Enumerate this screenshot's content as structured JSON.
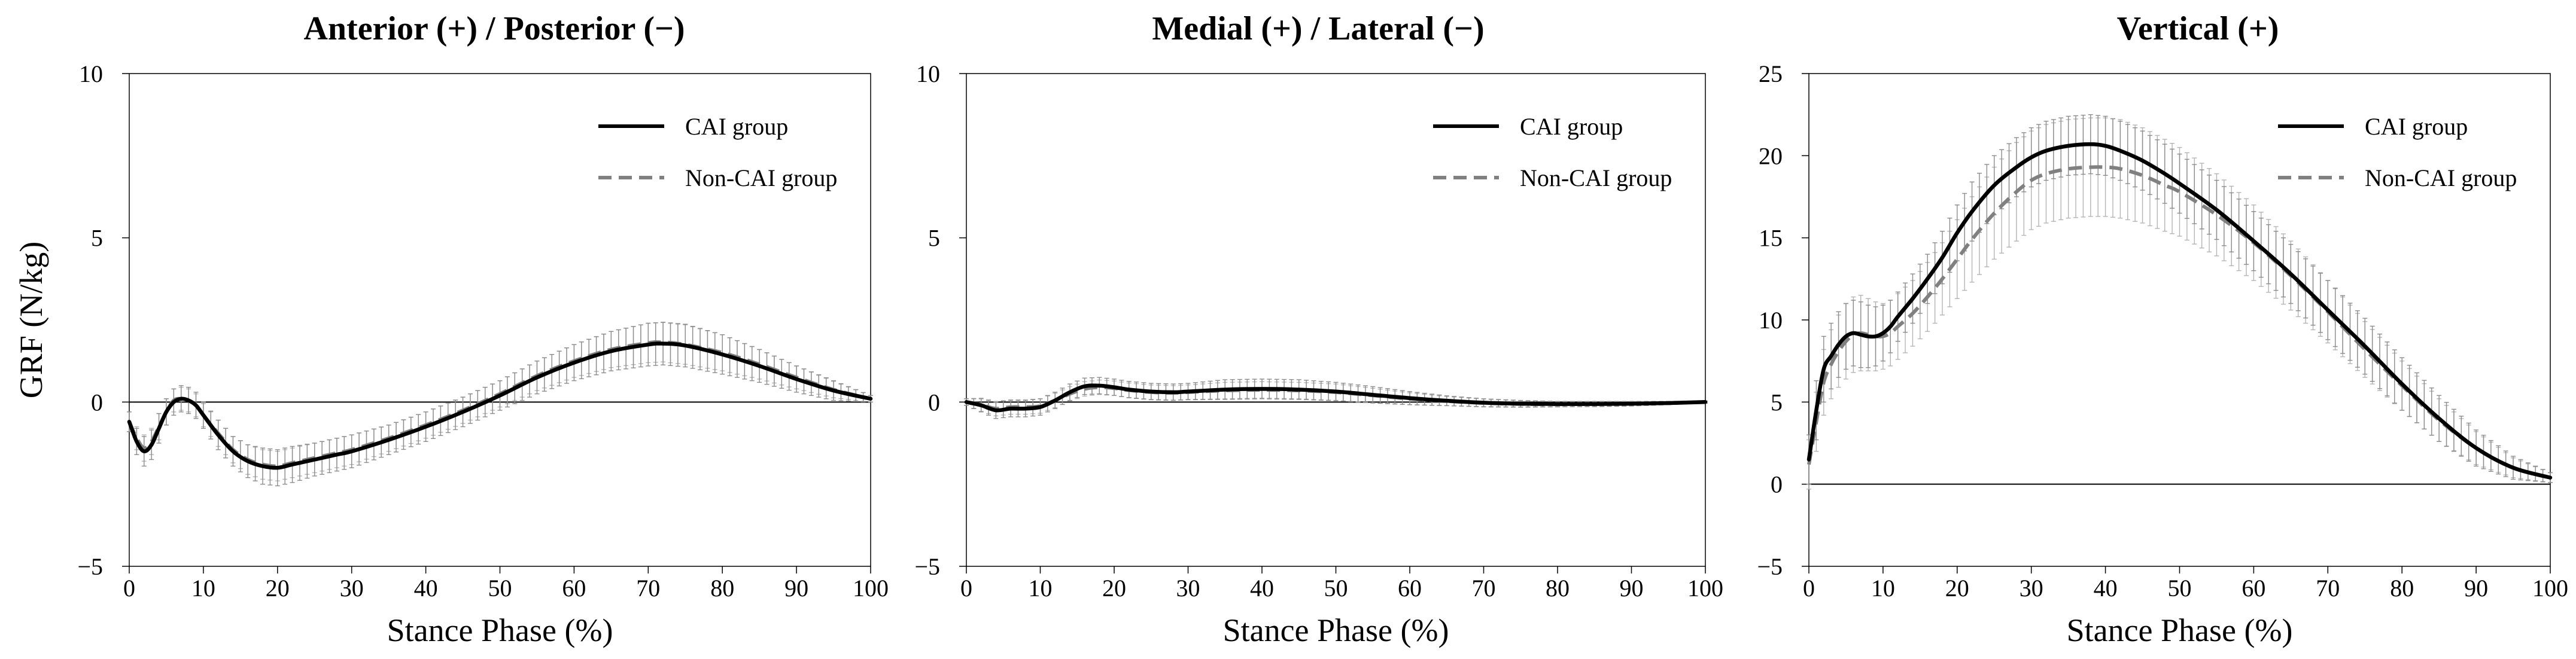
{
  "chart_data": [
    {
      "type": "line",
      "title": "Anterior (+) / Posterior (−)",
      "xlabel": "Stance Phase (%)",
      "ylabel": "GRF (N/kg)",
      "xlim": [
        0,
        100
      ],
      "ylim": [
        -5,
        10
      ],
      "xticks": [
        0,
        10,
        20,
        30,
        40,
        50,
        60,
        70,
        80,
        90,
        100
      ],
      "xtick_labels": [
        "0",
        "10",
        "20",
        "30",
        "40",
        "50",
        "60",
        "70",
        "80",
        "90",
        "100"
      ],
      "yticks": [
        -5,
        0,
        5,
        10
      ],
      "ytick_labels": [
        "−5",
        "0",
        "5",
        "10"
      ],
      "zero_line": true,
      "legend_position": "top-right",
      "series": [
        {
          "name": "CAI group",
          "style": "solid",
          "color": "#000000",
          "x": [
            0,
            1,
            2,
            3,
            4,
            5,
            6,
            7,
            8,
            9,
            10,
            12,
            14,
            16,
            18,
            20,
            22,
            25,
            28,
            30,
            35,
            40,
            45,
            50,
            55,
            60,
            65,
            70,
            72,
            75,
            80,
            85,
            90,
            95,
            100
          ],
          "y": [
            -0.6,
            -1.2,
            -1.5,
            -1.3,
            -0.8,
            -0.3,
            0.0,
            0.1,
            0.05,
            -0.1,
            -0.4,
            -1.0,
            -1.5,
            -1.8,
            -1.95,
            -2.0,
            -1.9,
            -1.75,
            -1.6,
            -1.5,
            -1.15,
            -0.75,
            -0.3,
            0.2,
            0.75,
            1.2,
            1.55,
            1.75,
            1.78,
            1.72,
            1.45,
            1.1,
            0.7,
            0.35,
            0.1
          ],
          "sd": [
            0.3,
            0.4,
            0.45,
            0.45,
            0.45,
            0.4,
            0.4,
            0.4,
            0.4,
            0.4,
            0.4,
            0.45,
            0.45,
            0.5,
            0.55,
            0.55,
            0.55,
            0.5,
            0.5,
            0.5,
            0.45,
            0.45,
            0.45,
            0.45,
            0.5,
            0.55,
            0.6,
            0.65,
            0.65,
            0.65,
            0.6,
            0.5,
            0.4,
            0.3,
            0.1
          ]
        },
        {
          "name": "Non-CAI group",
          "style": "dashed",
          "color": "#808080",
          "x": [
            0,
            1,
            2,
            3,
            4,
            5,
            6,
            7,
            8,
            9,
            10,
            12,
            14,
            16,
            18,
            20,
            22,
            25,
            28,
            30,
            35,
            40,
            45,
            50,
            55,
            60,
            65,
            70,
            72,
            75,
            80,
            85,
            90,
            95,
            100
          ],
          "y": [
            -0.6,
            -1.1,
            -1.4,
            -1.2,
            -0.75,
            -0.3,
            0.05,
            0.1,
            0.05,
            -0.1,
            -0.4,
            -0.95,
            -1.45,
            -1.75,
            -1.9,
            -1.95,
            -1.85,
            -1.7,
            -1.55,
            -1.45,
            -1.1,
            -0.7,
            -0.25,
            0.25,
            0.8,
            1.25,
            1.6,
            1.8,
            1.82,
            1.75,
            1.5,
            1.15,
            0.75,
            0.38,
            0.1
          ],
          "sd": [
            0.3,
            0.35,
            0.4,
            0.4,
            0.4,
            0.4,
            0.35,
            0.35,
            0.35,
            0.35,
            0.35,
            0.4,
            0.4,
            0.45,
            0.45,
            0.45,
            0.45,
            0.45,
            0.45,
            0.45,
            0.4,
            0.4,
            0.4,
            0.4,
            0.45,
            0.5,
            0.55,
            0.6,
            0.6,
            0.6,
            0.55,
            0.45,
            0.35,
            0.25,
            0.1
          ]
        }
      ]
    },
    {
      "type": "line",
      "title": "Medial (+) / Lateral (−)",
      "xlabel": "Stance Phase (%)",
      "ylabel": "",
      "xlim": [
        0,
        100
      ],
      "ylim": [
        -5,
        10
      ],
      "xticks": [
        0,
        10,
        20,
        30,
        40,
        50,
        60,
        70,
        80,
        90,
        100
      ],
      "xtick_labels": [
        "0",
        "10",
        "20",
        "30",
        "40",
        "50",
        "60",
        "70",
        "80",
        "90",
        "100"
      ],
      "yticks": [
        -5,
        0,
        5,
        10
      ],
      "ytick_labels": [
        "−5",
        "0",
        "5",
        "10"
      ],
      "zero_line": true,
      "legend_position": "top-right",
      "series": [
        {
          "name": "CAI group",
          "style": "solid",
          "color": "#000000",
          "x": [
            0,
            2,
            4,
            6,
            8,
            10,
            12,
            14,
            16,
            18,
            20,
            22,
            25,
            28,
            30,
            35,
            40,
            45,
            50,
            55,
            60,
            65,
            70,
            75,
            80,
            85,
            90,
            95,
            100
          ],
          "y": [
            0.0,
            -0.1,
            -0.25,
            -0.2,
            -0.2,
            -0.15,
            0.05,
            0.3,
            0.48,
            0.5,
            0.45,
            0.38,
            0.32,
            0.3,
            0.32,
            0.38,
            0.4,
            0.38,
            0.32,
            0.22,
            0.12,
            0.04,
            -0.02,
            -0.05,
            -0.06,
            -0.06,
            -0.05,
            -0.03,
            0.0
          ],
          "sd": [
            0.1,
            0.2,
            0.25,
            0.25,
            0.25,
            0.25,
            0.25,
            0.25,
            0.25,
            0.25,
            0.25,
            0.25,
            0.25,
            0.25,
            0.25,
            0.3,
            0.3,
            0.3,
            0.28,
            0.25,
            0.2,
            0.15,
            0.12,
            0.1,
            0.08,
            0.08,
            0.07,
            0.05,
            0.03
          ]
        },
        {
          "name": "Non-CAI group",
          "style": "dashed",
          "color": "#808080",
          "x": [
            0,
            2,
            4,
            6,
            8,
            10,
            12,
            14,
            16,
            18,
            20,
            22,
            25,
            28,
            30,
            35,
            40,
            45,
            50,
            55,
            60,
            65,
            70,
            75,
            80,
            85,
            90,
            95,
            100
          ],
          "y": [
            0.0,
            -0.08,
            -0.2,
            -0.15,
            -0.15,
            -0.12,
            0.05,
            0.25,
            0.4,
            0.45,
            0.42,
            0.36,
            0.3,
            0.28,
            0.3,
            0.35,
            0.37,
            0.35,
            0.3,
            0.2,
            0.1,
            0.03,
            -0.03,
            -0.06,
            -0.07,
            -0.06,
            -0.05,
            -0.03,
            0.0
          ],
          "sd": [
            0.1,
            0.2,
            0.22,
            0.22,
            0.22,
            0.22,
            0.22,
            0.22,
            0.22,
            0.22,
            0.22,
            0.22,
            0.22,
            0.22,
            0.22,
            0.25,
            0.25,
            0.25,
            0.25,
            0.22,
            0.18,
            0.14,
            0.12,
            0.1,
            0.08,
            0.07,
            0.06,
            0.05,
            0.03
          ]
        }
      ]
    },
    {
      "type": "line",
      "title": "Vertical (+)",
      "xlabel": "Stance Phase (%)",
      "ylabel": "",
      "xlim": [
        0,
        100
      ],
      "ylim": [
        -5,
        25
      ],
      "xticks": [
        0,
        10,
        20,
        30,
        40,
        50,
        60,
        70,
        80,
        90,
        100
      ],
      "xtick_labels": [
        "0",
        "10",
        "20",
        "30",
        "40",
        "50",
        "60",
        "70",
        "80",
        "90",
        "100"
      ],
      "yticks": [
        -5,
        0,
        5,
        10,
        15,
        20,
        25
      ],
      "ytick_labels": [
        "−5",
        "0",
        "5",
        "10",
        "15",
        "20",
        "25"
      ],
      "zero_line": true,
      "legend_position": "top-right",
      "series": [
        {
          "name": "CAI group",
          "style": "solid",
          "color": "#000000",
          "x": [
            0,
            1,
            2,
            3,
            4,
            5,
            6,
            7,
            8,
            9,
            10,
            11,
            12,
            14,
            16,
            18,
            20,
            22,
            25,
            28,
            30,
            32,
            35,
            38,
            40,
            42,
            45,
            48,
            50,
            55,
            60,
            65,
            70,
            75,
            80,
            85,
            90,
            95,
            100
          ],
          "y": [
            1.5,
            4.5,
            7.0,
            7.8,
            8.5,
            9.0,
            9.2,
            9.1,
            9.0,
            9.0,
            9.2,
            9.6,
            10.2,
            11.3,
            12.5,
            13.8,
            15.3,
            16.6,
            18.2,
            19.3,
            19.9,
            20.3,
            20.6,
            20.7,
            20.6,
            20.3,
            19.7,
            18.9,
            18.3,
            16.7,
            14.8,
            12.8,
            10.6,
            8.4,
            6.1,
            4.0,
            2.2,
            1.0,
            0.4
          ],
          "sd": [
            1.5,
            1.8,
            2.0,
            2.0,
            2.0,
            2.0,
            2.0,
            2.0,
            1.9,
            1.8,
            1.7,
            1.6,
            1.5,
            1.5,
            1.5,
            1.6,
            1.7,
            1.8,
            1.8,
            1.8,
            1.8,
            1.8,
            1.8,
            1.8,
            1.8,
            1.8,
            1.8,
            1.8,
            1.8,
            1.8,
            1.8,
            1.8,
            1.8,
            1.7,
            1.6,
            1.4,
            1.1,
            0.7,
            0.3
          ]
        },
        {
          "name": "Non-CAI group",
          "style": "dashed",
          "color": "#808080",
          "x": [
            0,
            1,
            2,
            3,
            4,
            5,
            6,
            7,
            8,
            9,
            10,
            11,
            12,
            14,
            16,
            18,
            20,
            22,
            25,
            28,
            30,
            32,
            35,
            38,
            40,
            42,
            45,
            48,
            50,
            55,
            60,
            65,
            70,
            75,
            80,
            85,
            90,
            95,
            100
          ],
          "y": [
            1.2,
            3.8,
            6.2,
            7.3,
            8.1,
            8.7,
            9.1,
            9.2,
            9.1,
            9.0,
            9.0,
            9.2,
            9.6,
            10.4,
            11.4,
            12.5,
            13.7,
            14.9,
            16.5,
            17.8,
            18.5,
            18.9,
            19.2,
            19.3,
            19.3,
            19.2,
            18.8,
            18.2,
            17.8,
            16.4,
            14.7,
            12.7,
            10.5,
            8.2,
            6.0,
            3.9,
            2.2,
            1.0,
            0.4
          ],
          "sd": [
            1.5,
            1.8,
            2.0,
            2.1,
            2.2,
            2.3,
            2.3,
            2.3,
            2.2,
            2.1,
            2.0,
            2.0,
            2.0,
            2.0,
            2.1,
            2.2,
            2.4,
            2.6,
            2.8,
            3.0,
            3.0,
            3.0,
            3.0,
            3.0,
            3.0,
            3.0,
            2.9,
            2.8,
            2.7,
            2.5,
            2.3,
            2.1,
            1.9,
            1.7,
            1.5,
            1.3,
            1.0,
            0.6,
            0.3
          ]
        }
      ]
    }
  ]
}
